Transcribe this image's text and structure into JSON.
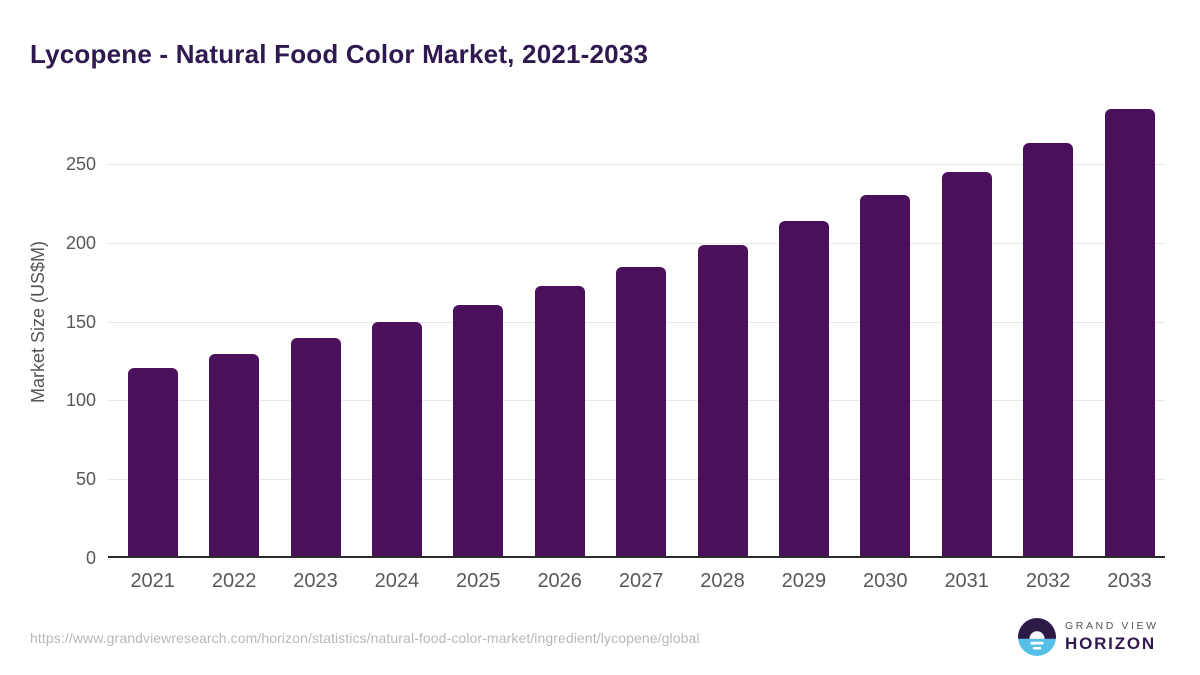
{
  "chart_data": {
    "type": "bar",
    "title": "Lycopene - Natural Food Color Market, 2021-2033",
    "categories": [
      "2021",
      "2022",
      "2023",
      "2024",
      "2025",
      "2026",
      "2027",
      "2028",
      "2029",
      "2030",
      "2031",
      "2032",
      "2033"
    ],
    "values": [
      120,
      129,
      139,
      149,
      160,
      172,
      184,
      198,
      213,
      230,
      244,
      263,
      284
    ],
    "xlabel": "",
    "ylabel": "Market Size (US$M)",
    "ylim": [
      0,
      290
    ],
    "yticks": [
      0,
      50,
      100,
      150,
      200,
      250
    ],
    "grid": "horizontal-only",
    "legend": "none",
    "bar_color": "#4a105c"
  },
  "footer": {
    "source_url": "https://www.grandviewresearch.com/horizon/statistics/natural-food-color-market/ingredient/lycopene/global"
  },
  "logo": {
    "icon": "horizon-sun-over-water-icon",
    "line1": "GRAND VIEW",
    "line2": "HORIZON"
  },
  "colors": {
    "title_text": "#2f1950",
    "bar": "#4a105c",
    "axis_text": "#58585a",
    "gridline": "#e8e8e8",
    "axis_line": "#2b2b2b",
    "footer_text": "#b8b8b8",
    "logo_dark": "#2c1b47",
    "logo_blue": "#57c0e8"
  }
}
